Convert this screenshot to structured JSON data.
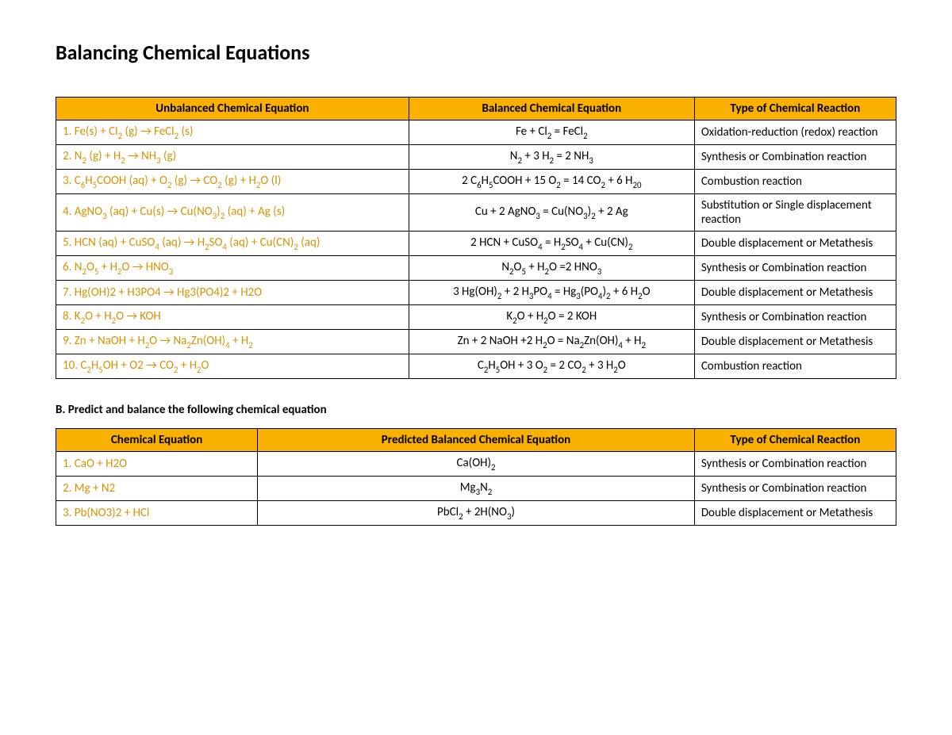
{
  "page_title": "Balancing Chemical Equations",
  "section_b_heading": "B. Predict and balance the following chemical equation",
  "colors": {
    "header_bg": "#f9b000",
    "eq_text": "#d89200",
    "border": "#000000",
    "body_text": "#000000",
    "background": "#ffffff"
  },
  "typography": {
    "title_fontsize_pt": 20,
    "body_fontsize_pt": 11,
    "font_family": "Calibri"
  },
  "tableA": {
    "columns": [
      "Unbalanced Chemical Equation",
      "Balanced Chemical Equation",
      "Type of Chemical Reaction"
    ],
    "col_widths_pct": [
      42,
      34,
      24
    ],
    "rows": [
      {
        "eq": "1. Fe(s) + Cl_2 (g) → FeCl_2 (s)",
        "bal": "Fe + Cl_2 = FeCl_2",
        "type": "Oxidation-reduction (redox) reaction"
      },
      {
        "eq": "2. N_2 (g) + H_2 → NH_3 (g)",
        "bal": "N_2 + 3 H_2 = 2 NH_3",
        "type": "Synthesis or Combination reaction"
      },
      {
        "eq": "3. C_6H_5COOH (aq) + O_2 (g) → CO_2 (g) + H_2O (l)",
        "bal": "2 C_6H_5COOH + 15 O_2 = 14 CO_2 + 6 H_20",
        "type": "Combustion reaction"
      },
      {
        "eq": "4.  AgNO_3 (aq) + Cu(s) → Cu(NO_3)_2 (aq) + Ag (s)",
        "bal": "Cu + 2 AgNO_3 = Cu(NO_3)_2 + 2 Ag",
        "type": "Substitution or Single displacement reaction"
      },
      {
        "eq": "5. HCN (aq) + CuSO_4 (aq) → H_2SO_4 (aq) + Cu(CN)_2 (aq)",
        "bal": "2 HCN + CuSO_4 = H_2SO_4 + Cu(CN)_2",
        "type": "Double displacement or Metathesis"
      },
      {
        "eq": "6. N_2O_5 + H_2O → HNO_3",
        "bal": "N_2O_5 + H_2O =2 HNO_3",
        "type": "Synthesis or Combination reaction"
      },
      {
        "eq": "7. Hg(OH)2 + H3PO4 → Hg3(PO4)2 + H2O",
        "bal": "3 Hg(OH)_2 + 2 H_3PO_4 = Hg_3(PO_4)_2 + 6 H_2O",
        "type": "Double displacement or Metathesis"
      },
      {
        "eq": "8. K_2O + H_2O → KOH",
        "bal": "K_2O + H_2O = 2 KOH",
        "type": "Synthesis or Combination reaction"
      },
      {
        "eq": "9. Zn + NaOH + H_2O → Na_2Zn(OH)_4 + H_2",
        "bal": "Zn + 2 NaOH +2 H_2O = Na_2Zn(OH)_4 + H_2",
        "type": "Double displacement or Metathesis"
      },
      {
        "eq": "10. C_2H_5OH + O2 → CO_2 + H_2O",
        "bal": "C_2H_5OH + 3 O_2 = 2 CO_2 + 3 H_2O",
        "type": "Combustion reaction"
      }
    ]
  },
  "tableB": {
    "columns": [
      "Chemical Equation",
      "Predicted Balanced Chemical Equation",
      "Type of Chemical Reaction"
    ],
    "col_widths_pct": [
      24,
      52,
      24
    ],
    "rows": [
      {
        "eq": "1. CaO + H2O",
        "bal": "Ca(OH)_2",
        "type": "Synthesis or Combination reaction"
      },
      {
        "eq": "2. Mg + N2",
        "bal": "Mg_3N_2",
        "type": "Synthesis or Combination reaction"
      },
      {
        "eq": "3. Pb(NO3)2 + HCl",
        "bal": "PbCl_2 + 2H(NO_3)",
        "type": "Double displacement or Metathesis"
      }
    ]
  }
}
